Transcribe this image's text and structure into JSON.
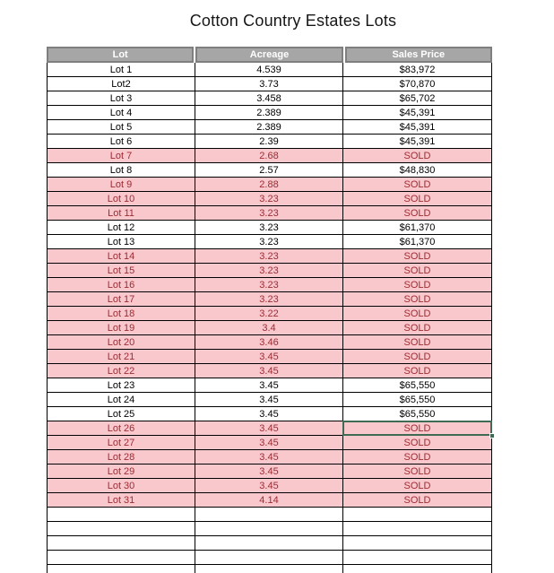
{
  "title": "Cotton Country Estates Lots",
  "table": {
    "columns": [
      "Lot",
      "Acreage",
      "Sales Price"
    ],
    "rows": [
      {
        "lot": "Lot 1",
        "acreage": "4.539",
        "price": "$83,972",
        "sold": false
      },
      {
        "lot": "Lot2",
        "acreage": "3.73",
        "price": "$70,870",
        "sold": false
      },
      {
        "lot": "Lot 3",
        "acreage": "3.458",
        "price": "$65,702",
        "sold": false
      },
      {
        "lot": "Lot 4",
        "acreage": "2.389",
        "price": "$45,391",
        "sold": false
      },
      {
        "lot": "Lot 5",
        "acreage": "2.389",
        "price": "$45,391",
        "sold": false
      },
      {
        "lot": "Lot 6",
        "acreage": "2.39",
        "price": "$45,391",
        "sold": false
      },
      {
        "lot": "Lot 7",
        "acreage": "2.68",
        "price": "SOLD",
        "sold": true
      },
      {
        "lot": "Lot 8",
        "acreage": "2.57",
        "price": "$48,830",
        "sold": false
      },
      {
        "lot": "Lot 9",
        "acreage": "2.88",
        "price": "SOLD",
        "sold": true
      },
      {
        "lot": "Lot 10",
        "acreage": "3.23",
        "price": "SOLD",
        "sold": true
      },
      {
        "lot": "Lot 11",
        "acreage": "3.23",
        "price": "SOLD",
        "sold": true
      },
      {
        "lot": "Lot 12",
        "acreage": "3.23",
        "price": "$61,370",
        "sold": false
      },
      {
        "lot": "Lot 13",
        "acreage": "3.23",
        "price": "$61,370",
        "sold": false
      },
      {
        "lot": "Lot 14",
        "acreage": "3.23",
        "price": "SOLD",
        "sold": true
      },
      {
        "lot": "Lot 15",
        "acreage": "3.23",
        "price": "SOLD",
        "sold": true
      },
      {
        "lot": "Lot 16",
        "acreage": "3.23",
        "price": "SOLD",
        "sold": true
      },
      {
        "lot": "Lot 17",
        "acreage": "3.23",
        "price": "SOLD",
        "sold": true
      },
      {
        "lot": "Lot 18",
        "acreage": "3.22",
        "price": "SOLD",
        "sold": true
      },
      {
        "lot": "Lot 19",
        "acreage": "3.4",
        "price": "SOLD",
        "sold": true
      },
      {
        "lot": "Lot 20",
        "acreage": "3.46",
        "price": "SOLD",
        "sold": true
      },
      {
        "lot": "Lot 21",
        "acreage": "3.45",
        "price": "SOLD",
        "sold": true
      },
      {
        "lot": "Lot 22",
        "acreage": "3.45",
        "price": "SOLD",
        "sold": true
      },
      {
        "lot": "Lot 23",
        "acreage": "3.45",
        "price": "$65,550",
        "sold": false
      },
      {
        "lot": "Lot 24",
        "acreage": "3.45",
        "price": "$65,550",
        "sold": false
      },
      {
        "lot": "Lot 25",
        "acreage": "3.45",
        "price": "$65,550",
        "sold": false
      },
      {
        "lot": "Lot 26",
        "acreage": "3.45",
        "price": "SOLD",
        "sold": true
      },
      {
        "lot": "Lot 27",
        "acreage": "3.45",
        "price": "SOLD",
        "sold": true
      },
      {
        "lot": "Lot 28",
        "acreage": "3.45",
        "price": "SOLD",
        "sold": true
      },
      {
        "lot": "Lot 29",
        "acreage": "3.45",
        "price": "SOLD",
        "sold": true
      },
      {
        "lot": "Lot 30",
        "acreage": "3.45",
        "price": "SOLD",
        "sold": true
      },
      {
        "lot": "Lot 31",
        "acreage": "4.14",
        "price": "SOLD",
        "sold": true
      }
    ],
    "empty_rows": 5,
    "selection": {
      "row_index": 25,
      "col_index": 2
    }
  },
  "colors": {
    "header_bg": "#a6a6a6",
    "header_border": "#7f7f7f",
    "header_text": "#ffffff",
    "sold_bg": "#f9c8cd",
    "sold_text": "#9e2a32",
    "grid_border": "#000000",
    "selection_border": "#3f6b55"
  }
}
